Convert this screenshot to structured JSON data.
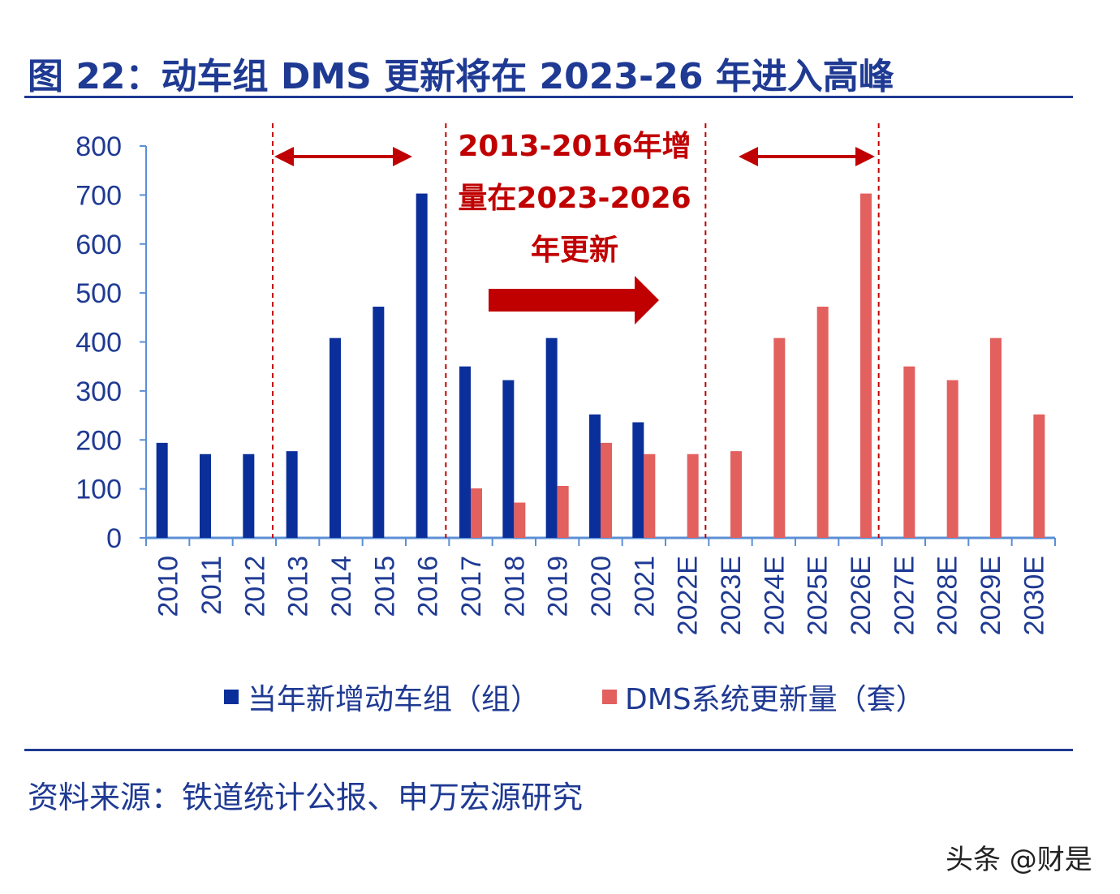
{
  "title": "图 22：动车组 DMS 更新将在 2023-26 年进入高峰",
  "source": "资料来源：铁道统计公报、申万宏源研究",
  "watermark": "头条 @财是",
  "chart_data": {
    "type": "bar",
    "categories": [
      "2010",
      "2011",
      "2012",
      "2013",
      "2014",
      "2015",
      "2016",
      "2017",
      "2018",
      "2019",
      "2020",
      "2021",
      "2022E",
      "2023E",
      "2024E",
      "2025E",
      "2026E",
      "2027E",
      "2028E",
      "2029E",
      "2030E"
    ],
    "series": [
      {
        "name": "当年新增动车组（组）",
        "color": "#0b2f9a",
        "values": [
          194,
          171,
          171,
          177,
          408,
          472,
          703,
          350,
          322,
          408,
          252,
          236,
          null,
          null,
          null,
          null,
          null,
          null,
          null,
          null,
          null
        ]
      },
      {
        "name": "DMS系统更新量（套）",
        "color": "#e2605e",
        "values": [
          null,
          null,
          null,
          null,
          null,
          null,
          null,
          101,
          72,
          106,
          194,
          171,
          171,
          177,
          408,
          472,
          703,
          350,
          322,
          408,
          252
        ]
      }
    ],
    "yticks": [
      0,
      100,
      200,
      300,
      400,
      500,
      600,
      700,
      800
    ],
    "ylim": [
      0,
      800
    ],
    "legend": "bottom",
    "annotation": {
      "lines": [
        "2013-2016年增",
        "量在2023-2026",
        "年更新"
      ],
      "color": "#c00000"
    },
    "dividers_after": [
      "2012",
      "2016",
      "2022E",
      "2026E"
    ]
  }
}
